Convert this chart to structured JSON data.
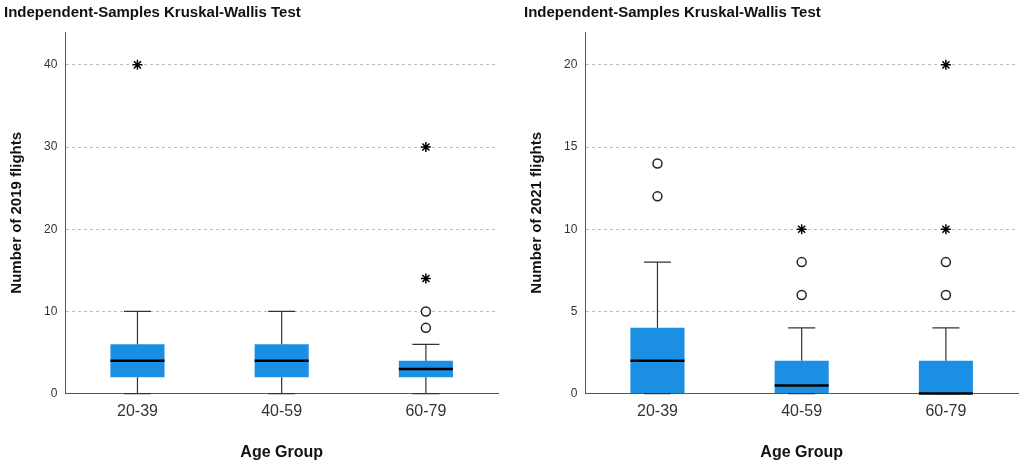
{
  "chart_data": [
    {
      "type": "box",
      "title": "Independent-Samples Kruskal-Wallis Test",
      "xlabel": "Age Group",
      "ylabel": "Number of 2019 flights",
      "categories": [
        "20-39",
        "40-59",
        "60-79"
      ],
      "ylim": [
        0,
        44
      ],
      "yticks": [
        0,
        10,
        20,
        30,
        40
      ],
      "grid": "y",
      "legend": false,
      "series": [
        {
          "type": "box",
          "color": "#1a8fe3",
          "boxes": [
            {
              "low": 0,
              "q1": 2,
              "median": 4,
              "q3": 6,
              "high": 10
            },
            {
              "low": 0,
              "q1": 2,
              "median": 4,
              "q3": 6,
              "high": 10
            },
            {
              "low": 0,
              "q1": 2,
              "median": 3,
              "q3": 4,
              "high": 6,
              "outliers": [
                8,
                10
              ]
            }
          ]
        },
        {
          "type": "scatter",
          "marker": "cross",
          "color": "#000000",
          "x": [
            "20-39",
            "60-79",
            "60-79"
          ],
          "values": [
            40,
            14,
            30
          ]
        }
      ]
    },
    {
      "type": "box",
      "title": "Independent-Samples Kruskal-Wallis Test",
      "xlabel": "Age Group",
      "ylabel": "Number of 2021 flights",
      "categories": [
        "20-39",
        "40-59",
        "60-79"
      ],
      "ylim": [
        0,
        22
      ],
      "yticks": [
        0,
        5,
        10,
        15,
        20
      ],
      "grid": "y",
      "legend": false,
      "series": [
        {
          "type": "box",
          "color": "#1a8fe3",
          "boxes": [
            {
              "low": 0,
              "q1": 0,
              "median": 2,
              "q3": 4,
              "high": 8,
              "outliers": [
                12,
                14
              ]
            },
            {
              "low": 0,
              "q1": 0,
              "median": 0.5,
              "q3": 2,
              "high": 4,
              "outliers": [
                6,
                8
              ]
            },
            {
              "low": 0,
              "q1": 0,
              "median": 0,
              "q3": 2,
              "high": 4,
              "outliers": [
                6,
                8
              ]
            }
          ]
        },
        {
          "type": "scatter",
          "marker": "cross",
          "color": "#000000",
          "x": [
            "40-59",
            "60-79",
            "60-79"
          ],
          "values": [
            10,
            10,
            20
          ]
        }
      ]
    }
  ]
}
